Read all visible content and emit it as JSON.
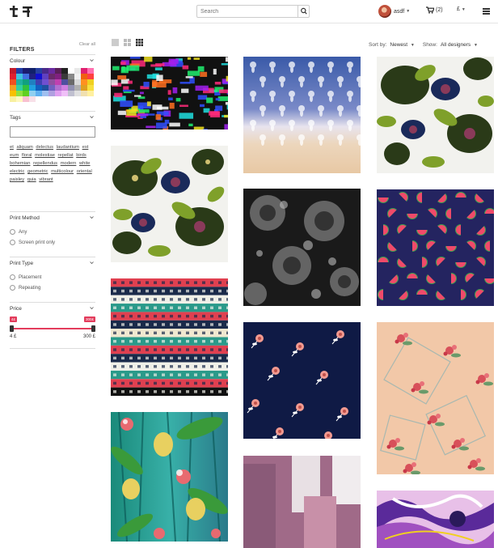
{
  "header": {
    "search_placeholder": "Search",
    "username": "asdf",
    "cart_count": "(2)",
    "currency": "£"
  },
  "filters": {
    "title": "FILTERS",
    "clear_all": "Clear all",
    "colour": {
      "label": "Colour",
      "swatches": [
        "#c21a2b",
        "#1f3ea8",
        "#1b1b6e",
        "#11216b",
        "#2840a0",
        "#4a2a8a",
        "#6b2aa0",
        "#5a2058",
        "#222",
        "#fff",
        "#e8e8e8",
        "#e02070",
        "#ff70b0",
        "#e02030",
        "#40c0e0",
        "#4070e0",
        "#202080",
        "#1010d0",
        "#6040c0",
        "#6a2a6a",
        "#802080",
        "#3a3a3a",
        "#888",
        "#f0f0f0",
        "#f06010",
        "#ff4040",
        "#f05020",
        "#20b0a0",
        "#10a080",
        "#2080c0",
        "#4040b0",
        "#7050d0",
        "#9050a0",
        "#c040b0",
        "#5050a0",
        "#6a6a6a",
        "#d8d8d8",
        "#ff9020",
        "#f0d020",
        "#f0a020",
        "#30d0a0",
        "#30c040",
        "#20a0e0",
        "#1060c0",
        "#2050a0",
        "#7060c0",
        "#b070d0",
        "#d080e0",
        "#9090b0",
        "#b0b0b0",
        "#e0a020",
        "#f8e040",
        "#f8c000",
        "#90e040",
        "#60d020",
        "#90d0f0",
        "#60b0f0",
        "#a0c0f0",
        "#b0a0e0",
        "#e0a0f0",
        "#f0c0f8",
        "#c0c0d0",
        "#e0e0e0",
        "#f0e0b0",
        "#fff0a0",
        "#f8f0a0",
        "#fff8c0",
        "#f8c0d0",
        "#f8e0e8"
      ]
    },
    "tags": {
      "label": "Tags",
      "input_value": "",
      "items": [
        "et",
        "aliquam",
        "delectus",
        "laudantium",
        "est",
        "eum",
        "floral",
        "molestiae",
        "repellat",
        "birds",
        "bohemian",
        "repellendus",
        "modern",
        "white",
        "electric",
        "geometric",
        "multicolour",
        "oriental",
        "paisley",
        "quia",
        "vibrant"
      ]
    },
    "print_method": {
      "label": "Print Method",
      "options": [
        "Any",
        "Screen print only"
      ]
    },
    "print_type": {
      "label": "Print Type",
      "options": [
        "Placement",
        "Repeating"
      ]
    },
    "price": {
      "label": "Price",
      "min_tip": "4£",
      "max_tip": "300£",
      "min": "4 £",
      "max": "300 £"
    }
  },
  "toolbar": {
    "sort_label": "Sort by:",
    "sort_value": "Newest",
    "show_label": "Show:",
    "show_value": "All designers"
  },
  "colors": {
    "accent": "#e33c5c"
  },
  "tiles": [
    {
      "name": "glitch-multicolour-pattern"
    },
    {
      "name": "blue-damask-ombre-pattern"
    },
    {
      "name": "green-paisley-birds-pattern"
    },
    {
      "name": "green-paisley-birds-pattern-2"
    },
    {
      "name": "dark-floral-splatter-pattern"
    },
    {
      "name": "watermelon-navy-pattern"
    },
    {
      "name": "ethnic-geometric-stripe-pattern"
    },
    {
      "name": "navy-rose-floral-pattern"
    },
    {
      "name": "peach-floral-scarf-pattern"
    },
    {
      "name": "tropical-palm-teal-pattern"
    },
    {
      "name": "mauve-brush-stroke-pattern"
    },
    {
      "name": "purple-marble-swirl-pattern"
    }
  ]
}
